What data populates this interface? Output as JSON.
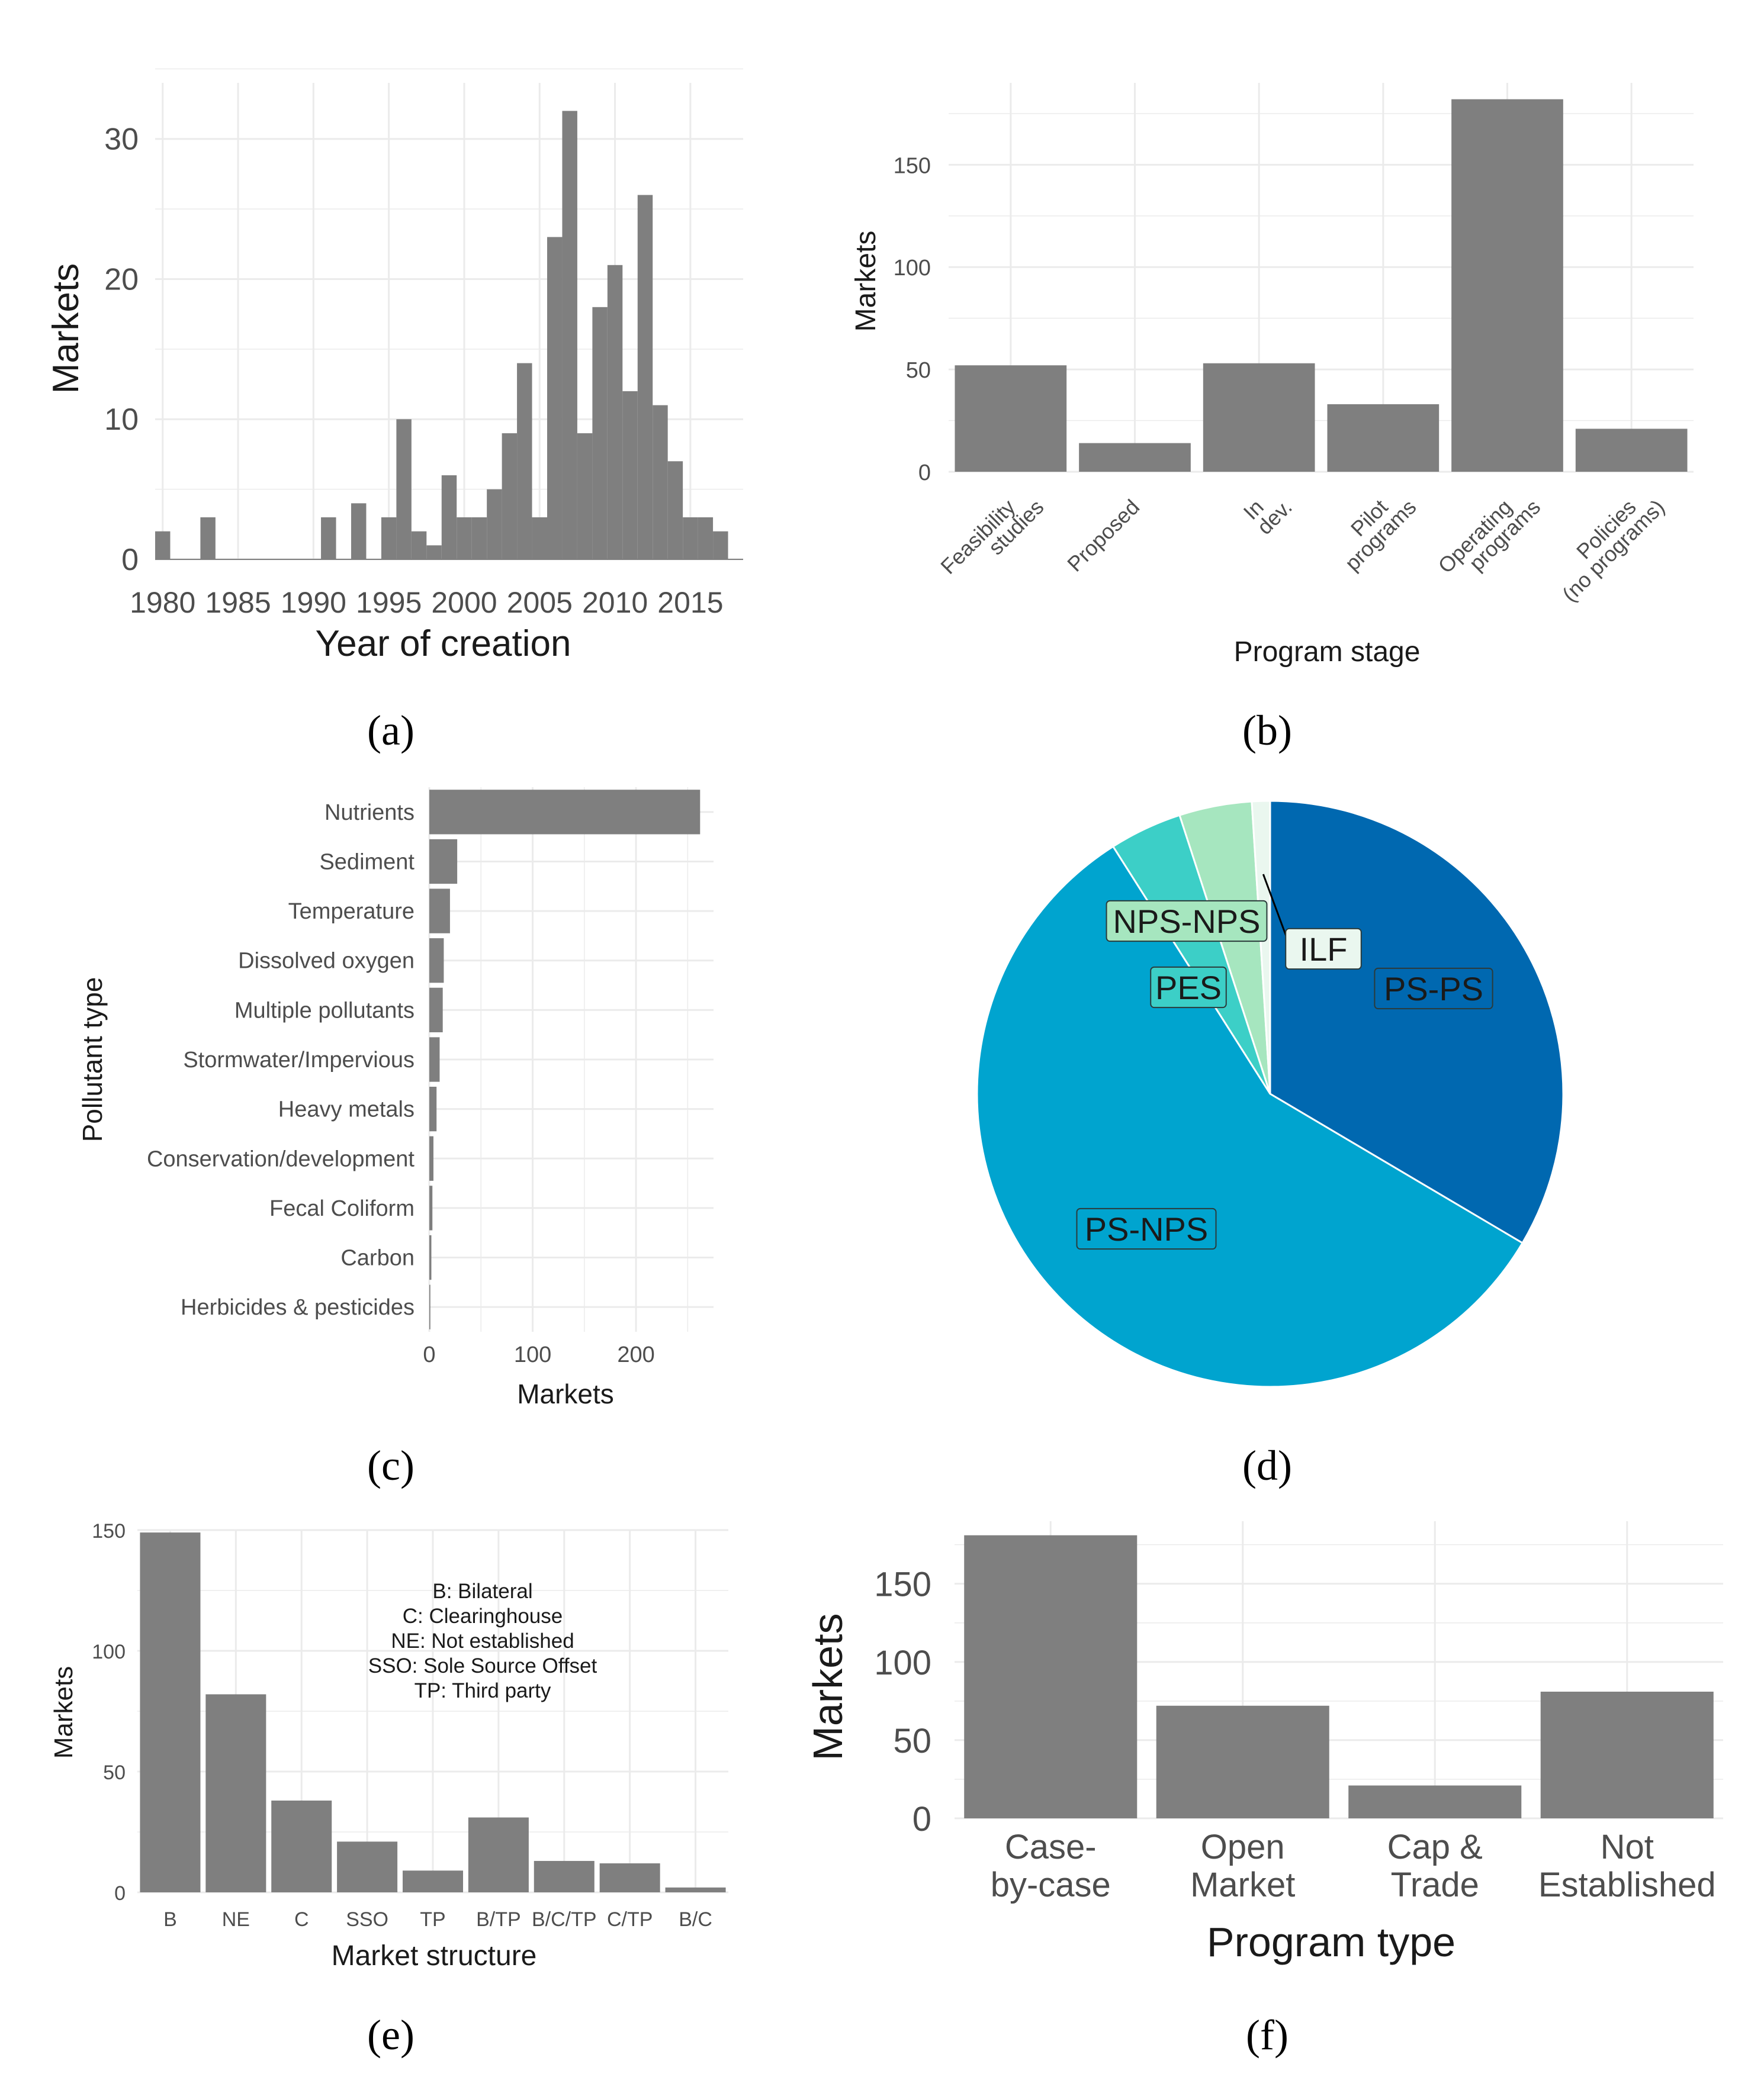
{
  "colors": {
    "bar": "#7f7f7f",
    "grid": "#ebebeb",
    "axis_text": "#4d4d4d",
    "title_text": "#1a1a1a",
    "pie_ps_ps": "#0068b0",
    "pie_ps_nps": "#00a4cf",
    "pie_pes": "#3ccfc7",
    "pie_nps_nps": "#a6e6bf",
    "pie_ilf": "#eaf7ef"
  },
  "panels": [
    {
      "label": "(a)"
    },
    {
      "label": "(b)"
    },
    {
      "label": "(c)"
    },
    {
      "label": "(d)"
    },
    {
      "label": "(e)"
    },
    {
      "label": "(f)"
    }
  ],
  "chart_data": [
    {
      "id": "a",
      "type": "bar",
      "title": "",
      "xlabel": "Year of creation",
      "ylabel": "Markets",
      "x": [
        1980,
        1981,
        1982,
        1983,
        1984,
        1985,
        1986,
        1987,
        1988,
        1989,
        1990,
        1991,
        1992,
        1993,
        1994,
        1995,
        1996,
        1997,
        1998,
        1999,
        2000,
        2001,
        2002,
        2003,
        2004,
        2005,
        2006,
        2007,
        2008,
        2009,
        2010,
        2011,
        2012,
        2013,
        2014,
        2015,
        2016,
        2017,
        2018
      ],
      "values": [
        2,
        0,
        0,
        3,
        0,
        0,
        0,
        0,
        0,
        0,
        0,
        3,
        0,
        4,
        0,
        3,
        10,
        2,
        1,
        6,
        3,
        3,
        5,
        9,
        14,
        3,
        23,
        32,
        9,
        18,
        21,
        12,
        26,
        11,
        7,
        3,
        3,
        2,
        0
      ],
      "xlim": [
        1979.5,
        2018.5
      ],
      "ylim": [
        0,
        34
      ],
      "xticks": [
        "1980",
        "1985",
        "1990",
        "1995",
        "2000",
        "2005",
        "2010",
        "2015"
      ],
      "yticks": [
        "0",
        "10",
        "20",
        "30"
      ],
      "grid": true
    },
    {
      "id": "b",
      "type": "bar",
      "title": "",
      "xlabel": "Program stage",
      "ylabel": "Markets",
      "categories": [
        [
          "Feasibility",
          "studies"
        ],
        [
          "Proposed"
        ],
        [
          "In",
          "dev."
        ],
        [
          "Pilot",
          "programs"
        ],
        [
          "Operating",
          "programs"
        ],
        [
          "Policies",
          "(no programs)"
        ]
      ],
      "values": [
        52,
        14,
        53,
        33,
        182,
        21
      ],
      "ylim": [
        0,
        190
      ],
      "yticks": [
        "0",
        "50",
        "100",
        "150"
      ],
      "grid": true
    },
    {
      "id": "c",
      "type": "bar",
      "orientation": "horizontal",
      "title": "",
      "xlabel": "Markets",
      "ylabel": "Pollutant type",
      "categories": [
        "Nutrients",
        "Sediment",
        "Temperature",
        "Dissolved oxygen",
        "Multiple pollutants",
        "Stormwater/Impervious",
        "Heavy metals",
        "Conservation/development",
        "Fecal Coliform",
        "Carbon",
        "Herbicides & pesticides"
      ],
      "values": [
        262,
        27,
        20,
        14,
        13,
        10,
        7,
        4,
        3,
        2,
        1
      ],
      "xlim": [
        0,
        275
      ],
      "xticks": [
        "0",
        "100",
        "200"
      ],
      "grid": true
    },
    {
      "id": "d",
      "type": "pie",
      "title": "",
      "slices": [
        {
          "label": "PS-PS",
          "value": 33.5,
          "color": "#0068b0",
          "text_color": "#1a1a1a"
        },
        {
          "label": "PS-NPS",
          "value": 57.5,
          "color": "#00a4cf",
          "text_color": "#1a1a1a"
        },
        {
          "label": "PES",
          "value": 4.0,
          "color": "#3ccfc7",
          "text_color": "#1a1a1a"
        },
        {
          "label": "NPS-NPS",
          "value": 4.0,
          "color": "#a6e6bf",
          "text_color": "#1a1a1a"
        },
        {
          "label": "ILF",
          "value": 1.0,
          "color": "#eaf7ef",
          "text_color": "#1a1a1a"
        }
      ]
    },
    {
      "id": "e",
      "type": "bar",
      "title": "",
      "xlabel": "Market structure",
      "ylabel": "Markets",
      "categories": [
        "B",
        "NE",
        "C",
        "SSO",
        "TP",
        "B/TP",
        "B/C/TP",
        "C/TP",
        "B/C"
      ],
      "values": [
        149,
        82,
        38,
        21,
        9,
        31,
        13,
        12,
        2
      ],
      "ylim": [
        0,
        150
      ],
      "yticks": [
        "0",
        "50",
        "100",
        "150"
      ],
      "annotation": [
        "B: Bilateral",
        "C: Clearinghouse",
        "NE: Not established",
        "SSO: Sole Source Offset",
        "TP: Third party"
      ],
      "grid": true
    },
    {
      "id": "f",
      "type": "bar",
      "title": "",
      "xlabel": "Program type",
      "ylabel": "Markets",
      "categories": [
        [
          "Case-",
          "by-case"
        ],
        [
          "Open",
          "Market"
        ],
        [
          "Cap &",
          "Trade"
        ],
        [
          "Not",
          "Established"
        ]
      ],
      "values": [
        181,
        72,
        21,
        81
      ],
      "ylim": [
        0,
        190
      ],
      "yticks": [
        "0",
        "50",
        "100",
        "150"
      ],
      "grid": true
    }
  ]
}
